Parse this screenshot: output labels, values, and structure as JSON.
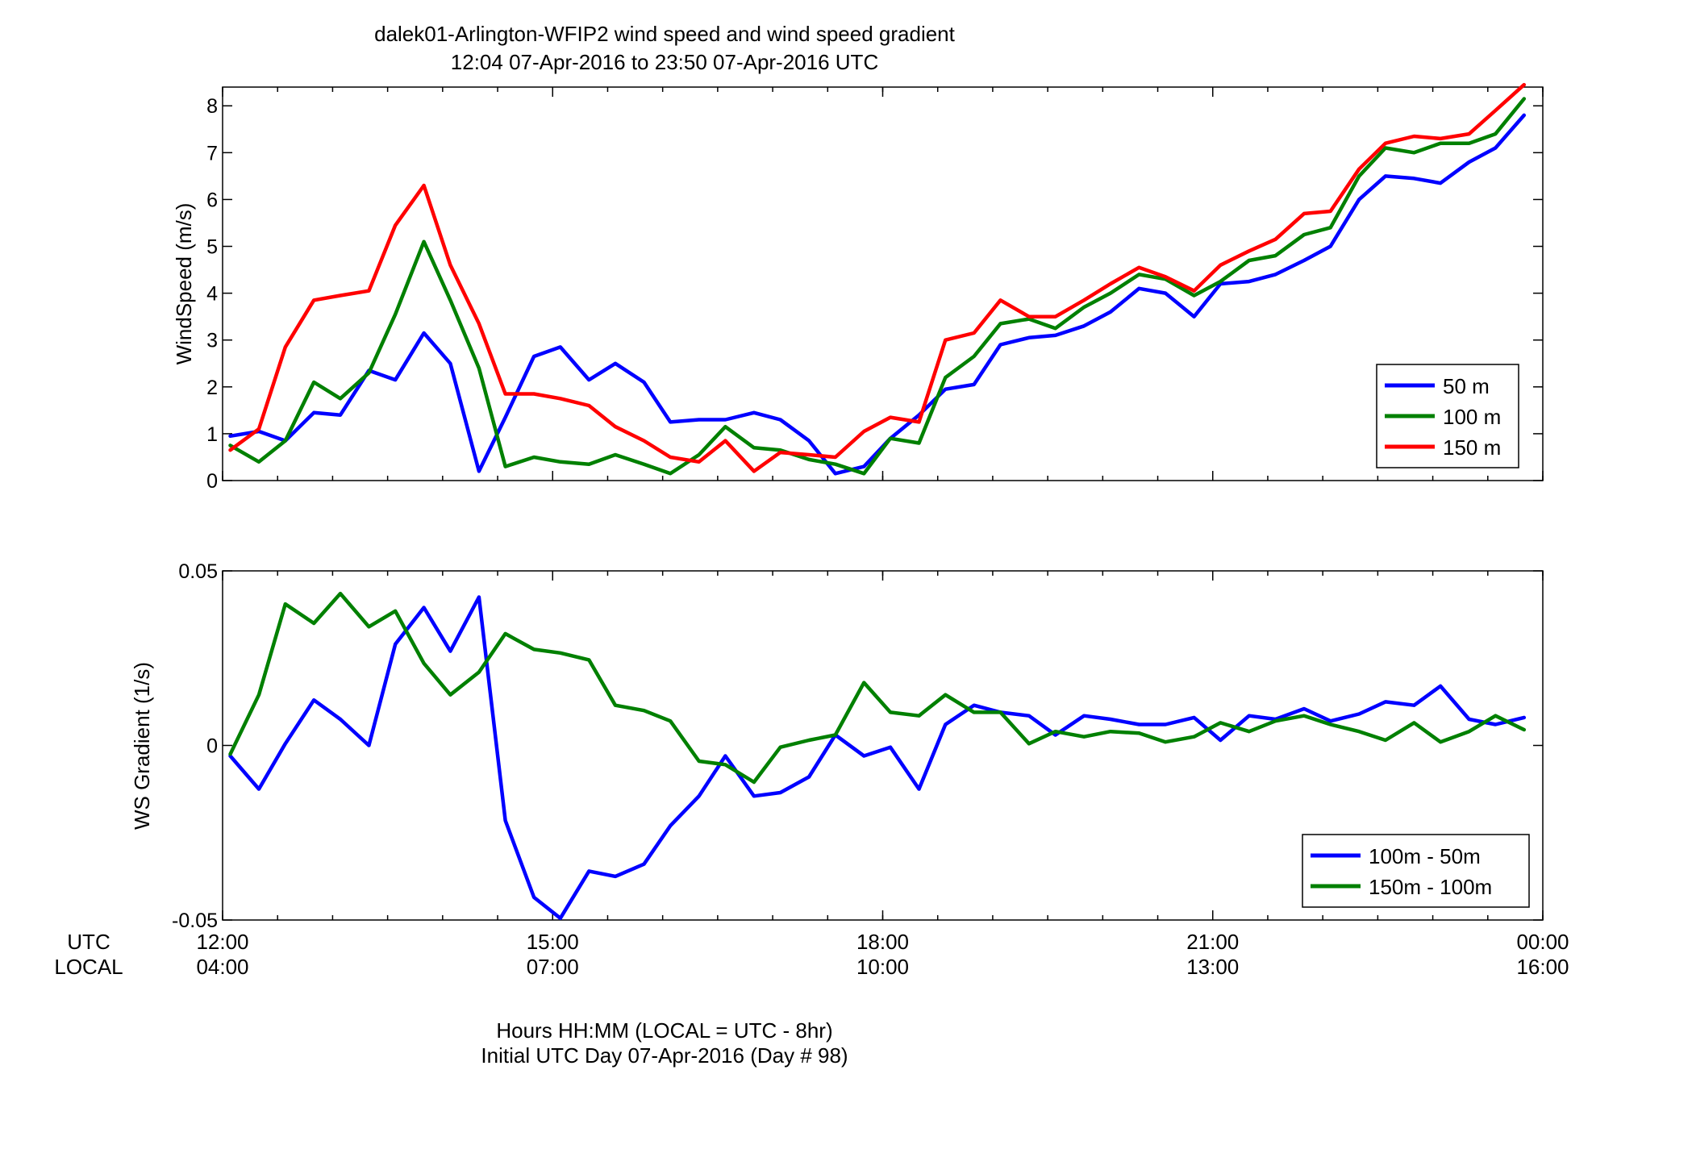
{
  "chart_data": [
    {
      "type": "line",
      "title": "dalek01-Arlington-WFIP2  wind speed and wind speed gradient",
      "subtitle": "12:04 07-Apr-2016 to 23:50 07-Apr-2016  UTC",
      "ylabel": "WindSpeed (m/s)",
      "ylim": [
        0,
        8.4
      ],
      "yticks": [
        "0",
        "1",
        "2",
        "3",
        "4",
        "5",
        "6",
        "7",
        "8"
      ],
      "ytick_values": [
        0,
        1,
        2,
        3,
        4,
        5,
        6,
        7,
        8
      ],
      "xlim": [
        12.0,
        24.0
      ],
      "legend_position": "bottom-right",
      "x": [
        12.07,
        12.33,
        12.57,
        12.83,
        13.07,
        13.33,
        13.57,
        13.83,
        14.07,
        14.33,
        14.57,
        14.83,
        15.07,
        15.33,
        15.57,
        15.83,
        16.07,
        16.33,
        16.57,
        16.83,
        17.07,
        17.33,
        17.57,
        17.83,
        18.07,
        18.33,
        18.57,
        18.83,
        19.07,
        19.33,
        19.57,
        19.83,
        20.07,
        20.33,
        20.57,
        20.83,
        21.07,
        21.33,
        21.57,
        21.83,
        22.07,
        22.33,
        22.57,
        22.83,
        23.07,
        23.33,
        23.57,
        23.83
      ],
      "series": [
        {
          "name": "50 m",
          "color": "#0000ff",
          "values": [
            0.95,
            1.05,
            0.85,
            1.45,
            1.4,
            2.35,
            2.15,
            3.15,
            2.5,
            0.2,
            1.35,
            2.65,
            2.85,
            2.15,
            2.5,
            2.1,
            1.25,
            1.3,
            1.3,
            1.45,
            1.3,
            0.85,
            0.15,
            0.3,
            0.9,
            1.4,
            1.95,
            2.05,
            2.9,
            3.05,
            3.1,
            3.3,
            3.6,
            4.1,
            4.0,
            3.5,
            4.2,
            4.25,
            4.4,
            4.7,
            5.0,
            6.0,
            6.5,
            6.45,
            6.35,
            6.8,
            7.1,
            7.8
          ]
        },
        {
          "name": "100 m",
          "color": "#008000",
          "values": [
            0.75,
            0.4,
            0.85,
            2.1,
            1.75,
            2.3,
            3.55,
            5.1,
            3.85,
            2.4,
            0.3,
            0.5,
            0.4,
            0.35,
            0.55,
            0.35,
            0.15,
            0.55,
            1.15,
            0.7,
            0.65,
            0.45,
            0.35,
            0.15,
            0.9,
            0.8,
            2.2,
            2.65,
            3.35,
            3.45,
            3.25,
            3.7,
            4.0,
            4.4,
            4.3,
            3.95,
            4.25,
            4.7,
            4.8,
            5.25,
            5.4,
            6.5,
            7.1,
            7.0,
            7.2,
            7.2,
            7.4,
            8.15
          ]
        },
        {
          "name": "150 m",
          "color": "#ff0000",
          "values": [
            0.65,
            1.1,
            2.85,
            3.85,
            3.95,
            4.05,
            5.45,
            6.3,
            4.6,
            3.35,
            1.85,
            1.85,
            1.75,
            1.6,
            1.15,
            0.85,
            0.5,
            0.4,
            0.85,
            0.2,
            0.6,
            0.55,
            0.5,
            1.05,
            1.35,
            1.25,
            3.0,
            3.15,
            3.85,
            3.5,
            3.5,
            3.85,
            4.2,
            4.55,
            4.35,
            4.05,
            4.6,
            4.9,
            5.15,
            5.7,
            5.75,
            6.65,
            7.2,
            7.35,
            7.3,
            7.4,
            7.9,
            8.45
          ]
        }
      ]
    },
    {
      "type": "line",
      "ylabel": "WS Gradient (1/s)",
      "ylim": [
        -0.05,
        0.05
      ],
      "yticks": [
        "-0.05",
        "0",
        "0.05"
      ],
      "ytick_values": [
        -0.05,
        0,
        0.05
      ],
      "xlim": [
        12.0,
        24.0
      ],
      "legend_position": "bottom-right",
      "x": [
        12.07,
        12.33,
        12.57,
        12.83,
        13.07,
        13.33,
        13.57,
        13.83,
        14.07,
        14.33,
        14.57,
        14.83,
        15.07,
        15.33,
        15.57,
        15.83,
        16.07,
        16.33,
        16.57,
        16.83,
        17.07,
        17.33,
        17.57,
        17.83,
        18.07,
        18.33,
        18.57,
        18.83,
        19.07,
        19.33,
        19.57,
        19.83,
        20.07,
        20.33,
        20.57,
        20.83,
        21.07,
        21.33,
        21.57,
        21.83,
        22.07,
        22.33,
        22.57,
        22.83,
        23.07,
        23.33,
        23.57,
        23.83
      ],
      "series": [
        {
          "name": "100m - 50m",
          "color": "#0000ff",
          "values": [
            -0.003,
            -0.0125,
            0.0005,
            0.013,
            0.0075,
            0.0,
            0.029,
            0.0395,
            0.027,
            0.0425,
            -0.0215,
            -0.0435,
            -0.0495,
            -0.036,
            -0.0375,
            -0.034,
            -0.023,
            -0.0145,
            -0.003,
            -0.0145,
            -0.0135,
            -0.009,
            0.003,
            -0.003,
            -0.0005,
            -0.0125,
            0.006,
            0.0115,
            0.0095,
            0.0085,
            0.003,
            0.0085,
            0.0075,
            0.006,
            0.006,
            0.008,
            0.0015,
            0.0085,
            0.0075,
            0.0105,
            0.007,
            0.009,
            0.0125,
            0.0115,
            0.017,
            0.0075,
            0.006,
            0.008
          ]
        },
        {
          "name": "150m - 100m",
          "color": "#008000",
          "values": [
            -0.0025,
            0.0145,
            0.0405,
            0.035,
            0.0435,
            0.034,
            0.0385,
            0.0235,
            0.0145,
            0.021,
            0.032,
            0.0275,
            0.0265,
            0.0245,
            0.0115,
            0.01,
            0.007,
            -0.0045,
            -0.0055,
            -0.0105,
            -0.0005,
            0.0015,
            0.003,
            0.018,
            0.0095,
            0.0085,
            0.0145,
            0.0095,
            0.0095,
            0.0005,
            0.004,
            0.0025,
            0.004,
            0.0035,
            0.001,
            0.0025,
            0.0065,
            0.004,
            0.007,
            0.0085,
            0.006,
            0.004,
            0.0015,
            0.0065,
            0.001,
            0.004,
            0.0085,
            0.0045
          ]
        }
      ]
    }
  ],
  "x_axis": {
    "utc_label": "UTC",
    "local_label": "LOCAL",
    "utc_ticks": [
      "12:00",
      "15:00",
      "18:00",
      "21:00",
      "00:00"
    ],
    "local_ticks": [
      "04:00",
      "07:00",
      "10:00",
      "13:00",
      "16:00"
    ],
    "tick_values": [
      12,
      15,
      18,
      21,
      24
    ],
    "xlabel_line1": "Hours HH:MM  (LOCAL = UTC - 8hr)",
    "xlabel_line2": "Initial UTC Day 07-Apr-2016 (Day # 98)"
  }
}
